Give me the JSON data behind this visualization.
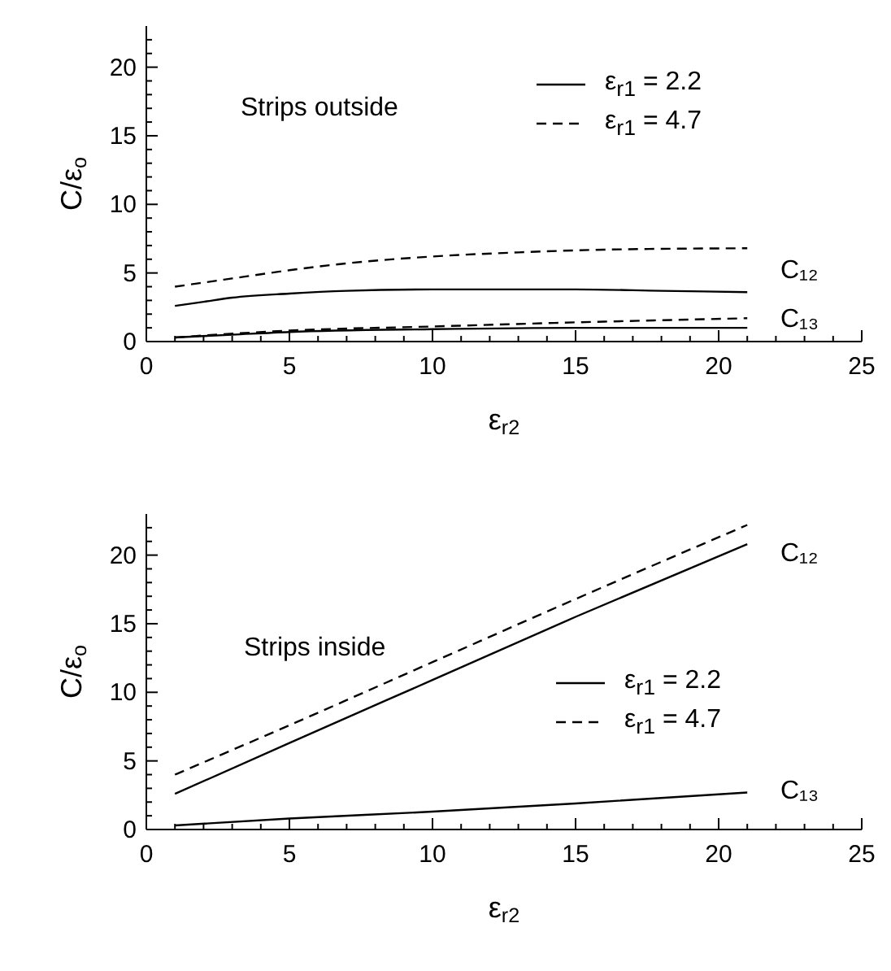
{
  "chart_data": [
    {
      "type": "line",
      "xlabel": "ε$_{r2}$",
      "ylabel": "C/ε$_{o}$",
      "xlim": [
        0,
        25
      ],
      "ylim": [
        0,
        23
      ],
      "xticks": [
        0,
        {
          "value": 1,
          "label": null
        },
        {
          "value": 2,
          "label": null
        },
        {
          "value": 3,
          "label": null
        },
        {
          "value": 4,
          "label": null
        },
        5,
        {
          "value": 6,
          "label": null
        },
        {
          "value": 7,
          "label": null
        },
        {
          "value": 8,
          "label": null
        },
        {
          "value": 9,
          "label": null
        },
        10,
        {
          "value": 11,
          "label": null
        },
        {
          "value": 12,
          "label": null
        },
        {
          "value": 13,
          "label": null
        },
        {
          "value": 14,
          "label": null
        },
        15,
        {
          "value": 16,
          "label": null
        },
        {
          "value": 17,
          "label": null
        },
        {
          "value": 18,
          "label": null
        },
        {
          "value": 19,
          "label": null
        },
        20,
        {
          "value": 21,
          "label": null
        },
        {
          "value": 22,
          "label": null
        },
        {
          "value": 23,
          "label": null
        },
        {
          "value": 24,
          "label": null
        },
        25
      ],
      "yticks": [
        0,
        {
          "value": 1,
          "label": null
        },
        {
          "value": 2,
          "label": null
        },
        {
          "value": 3,
          "label": null
        },
        {
          "value": 4,
          "label": null
        },
        5,
        {
          "value": 6,
          "label": null
        },
        {
          "value": 7,
          "label": null
        },
        {
          "value": 8,
          "label": null
        },
        {
          "value": 9,
          "label": null
        },
        10,
        {
          "value": 11,
          "label": null
        },
        {
          "value": 12,
          "label": null
        },
        {
          "value": 13,
          "label": null
        },
        {
          "value": 14,
          "label": null
        },
        15,
        {
          "value": 16,
          "label": null
        },
        {
          "value": 17,
          "label": null
        },
        {
          "value": 18,
          "label": null
        },
        {
          "value": 19,
          "label": null
        },
        20,
        {
          "value": 21,
          "label": null
        },
        {
          "value": 22,
          "label": null
        }
      ],
      "marker": "none",
      "grid": false,
      "legend": "top right",
      "annotations": [
        "Strips outside",
        "C₁₂",
        "C₁₃"
      ],
      "series": [
        {
          "name": "ε$_{r1}$ = 2.2",
          "color": "#000000",
          "line_style": "solid",
          "x": [
            1,
            2,
            3,
            5,
            7,
            10,
            15,
            18,
            21
          ],
          "values": [
            2.6,
            2.9,
            3.2,
            3.5,
            3.7,
            3.8,
            3.8,
            3.7,
            3.6
          ]
        },
        {
          "name": "ε$_{r1}$ = 4.7",
          "color": "#000000",
          "line_style": "dashed",
          "x": [
            1,
            3,
            5,
            7,
            10,
            13,
            16,
            21
          ],
          "values": [
            4.0,
            4.6,
            5.2,
            5.7,
            6.2,
            6.5,
            6.7,
            6.8
          ]
        },
        {
          "color": "#000000",
          "line_style": "solid",
          "x": [
            1,
            3,
            5,
            10,
            15,
            21
          ],
          "values": [
            0.3,
            0.5,
            0.7,
            0.9,
            1.0,
            1.0
          ]
        },
        {
          "color": "#000000",
          "line_style": "dashed",
          "x": [
            1,
            5,
            10,
            15,
            21
          ],
          "values": [
            0.3,
            0.8,
            1.1,
            1.4,
            1.7
          ]
        }
      ]
    },
    {
      "type": "line",
      "xlabel": "ε$_{r2}$",
      "ylabel": "C/ε$_{o}$",
      "xlim": [
        0,
        25
      ],
      "ylim": [
        0,
        23
      ],
      "xticks": [
        0,
        {
          "value": 1,
          "label": null
        },
        {
          "value": 2,
          "label": null
        },
        {
          "value": 3,
          "label": null
        },
        {
          "value": 4,
          "label": null
        },
        5,
        {
          "value": 6,
          "label": null
        },
        {
          "value": 7,
          "label": null
        },
        {
          "value": 8,
          "label": null
        },
        {
          "value": 9,
          "label": null
        },
        10,
        {
          "value": 11,
          "label": null
        },
        {
          "value": 12,
          "label": null
        },
        {
          "value": 13,
          "label": null
        },
        {
          "value": 14,
          "label": null
        },
        15,
        {
          "value": 16,
          "label": null
        },
        {
          "value": 17,
          "label": null
        },
        {
          "value": 18,
          "label": null
        },
        {
          "value": 19,
          "label": null
        },
        20,
        {
          "value": 21,
          "label": null
        },
        {
          "value": 22,
          "label": null
        },
        {
          "value": 23,
          "label": null
        },
        {
          "value": 24,
          "label": null
        },
        25
      ],
      "yticks": [
        0,
        {
          "value": 1,
          "label": null
        },
        {
          "value": 2,
          "label": null
        },
        {
          "value": 3,
          "label": null
        },
        {
          "value": 4,
          "label": null
        },
        5,
        {
          "value": 6,
          "label": null
        },
        {
          "value": 7,
          "label": null
        },
        {
          "value": 8,
          "label": null
        },
        {
          "value": 9,
          "label": null
        },
        10,
        {
          "value": 11,
          "label": null
        },
        {
          "value": 12,
          "label": null
        },
        {
          "value": 13,
          "label": null
        },
        {
          "value": 14,
          "label": null
        },
        15,
        {
          "value": 16,
          "label": null
        },
        {
          "value": 17,
          "label": null
        },
        {
          "value": 18,
          "label": null
        },
        {
          "value": 19,
          "label": null
        },
        20,
        {
          "value": 21,
          "label": null
        },
        {
          "value": 22,
          "label": null
        }
      ],
      "marker": "none",
      "grid": false,
      "legend": "right",
      "annotations": [
        "Strips inside",
        "C₁₂",
        "C₁₃"
      ],
      "series": [
        {
          "name": "ε$_{r1}$ = 2.2",
          "color": "#000000",
          "line_style": "solid",
          "x": [
            1,
            5,
            10,
            15,
            21
          ],
          "values": [
            2.6,
            6.3,
            10.9,
            15.5,
            20.8
          ]
        },
        {
          "name": "ε$_{r1}$ = 4.7",
          "color": "#000000",
          "line_style": "dashed",
          "x": [
            1,
            5,
            10,
            15,
            21
          ],
          "values": [
            4.0,
            7.6,
            12.2,
            16.8,
            22.2
          ]
        },
        {
          "color": "#000000",
          "line_style": "solid",
          "x": [
            1,
            5,
            10,
            15,
            21
          ],
          "values": [
            0.3,
            0.8,
            1.3,
            1.9,
            2.7
          ]
        }
      ]
    }
  ]
}
